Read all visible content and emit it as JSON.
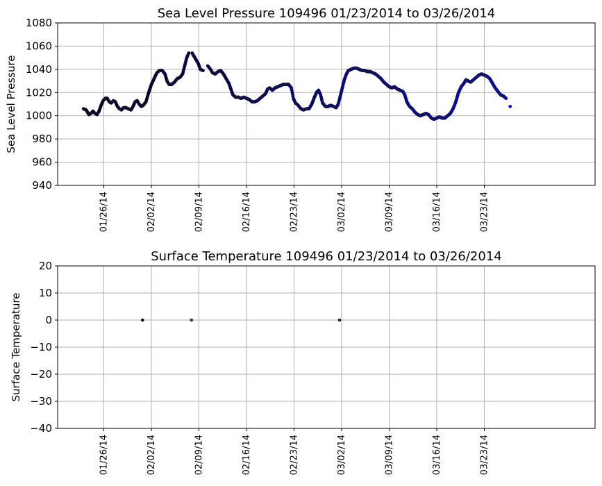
{
  "chart_data": [
    {
      "type": "scatter",
      "title": "Sea Level Pressure 109496  01/23/2014 to 03/26/2014",
      "xlabel": "",
      "ylabel": "Sea Level Pressure",
      "ylim": [
        940,
        1080
      ],
      "yticks": [
        940,
        960,
        980,
        1000,
        1020,
        1040,
        1060,
        1080
      ],
      "xlim_days": [
        -3.8,
        75.3
      ],
      "xticks": [
        {
          "day": 3,
          "label": "01/26/14"
        },
        {
          "day": 10,
          "label": "02/02/14"
        },
        {
          "day": 17,
          "label": "02/09/14"
        },
        {
          "day": 24,
          "label": "02/16/14"
        },
        {
          "day": 31,
          "label": "02/23/14"
        },
        {
          "day": 38,
          "label": "03/02/14"
        },
        {
          "day": 45,
          "label": "03/09/14"
        },
        {
          "day": 52,
          "label": "03/16/14"
        },
        {
          "day": 59,
          "label": "03/23/14"
        }
      ],
      "grid": true,
      "color_gradient": [
        "#000000",
        "#0000ff"
      ],
      "segments": [
        {
          "name": "segment-1",
          "points": [
            [
              0.0,
              1006
            ],
            [
              0.4,
              1005
            ],
            [
              0.8,
              1001
            ],
            [
              1.1,
              1002
            ],
            [
              1.4,
              1004
            ],
            [
              1.7,
              1002
            ],
            [
              2.0,
              1001
            ],
            [
              2.3,
              1004
            ],
            [
              2.6,
              1009
            ],
            [
              2.9,
              1013
            ],
            [
              3.2,
              1015
            ],
            [
              3.5,
              1015
            ],
            [
              3.8,
              1012
            ],
            [
              4.1,
              1011
            ],
            [
              4.4,
              1013
            ],
            [
              4.7,
              1012
            ],
            [
              5.0,
              1008
            ],
            [
              5.3,
              1006
            ],
            [
              5.6,
              1005
            ],
            [
              5.9,
              1007
            ],
            [
              6.2,
              1007
            ],
            [
              6.6,
              1006
            ],
            [
              7.0,
              1005
            ],
            [
              7.3,
              1008
            ],
            [
              7.6,
              1012
            ],
            [
              7.9,
              1013
            ],
            [
              8.2,
              1010
            ],
            [
              8.5,
              1008
            ],
            [
              8.8,
              1009
            ],
            [
              9.2,
              1012
            ],
            [
              9.6,
              1020
            ],
            [
              10.0,
              1027
            ],
            [
              10.4,
              1032
            ],
            [
              10.8,
              1037
            ],
            [
              11.2,
              1039
            ],
            [
              11.6,
              1039
            ],
            [
              12.0,
              1036
            ],
            [
              12.3,
              1030
            ],
            [
              12.6,
              1027
            ],
            [
              13.0,
              1027
            ],
            [
              13.4,
              1029
            ],
            [
              13.8,
              1032
            ],
            [
              14.2,
              1033
            ],
            [
              14.6,
              1036
            ],
            [
              14.9,
              1043
            ],
            [
              15.2,
              1050
            ],
            [
              15.5,
              1054
            ]
          ]
        },
        {
          "name": "segment-2",
          "points": [
            [
              16.0,
              1054
            ],
            [
              16.3,
              1051
            ],
            [
              16.6,
              1048
            ],
            [
              16.9,
              1045
            ],
            [
              17.2,
              1040
            ],
            [
              17.6,
              1039
            ]
          ]
        },
        {
          "name": "segment-3",
          "points": [
            [
              18.3,
              1043
            ],
            [
              18.7,
              1040
            ],
            [
              19.0,
              1037
            ],
            [
              19.4,
              1036
            ],
            [
              19.8,
              1038
            ],
            [
              20.2,
              1039
            ],
            [
              20.6,
              1036
            ],
            [
              21.0,
              1032
            ],
            [
              21.4,
              1028
            ],
            [
              21.7,
              1023
            ],
            [
              22.0,
              1018
            ],
            [
              22.4,
              1016
            ],
            [
              22.8,
              1016
            ],
            [
              23.2,
              1015
            ],
            [
              23.6,
              1016
            ],
            [
              24.0,
              1015
            ],
            [
              24.4,
              1014
            ],
            [
              24.8,
              1012
            ],
            [
              25.2,
              1012
            ],
            [
              25.6,
              1013
            ],
            [
              26.0,
              1015
            ],
            [
              26.4,
              1017
            ],
            [
              26.8,
              1019
            ],
            [
              27.1,
              1023
            ],
            [
              27.4,
              1024
            ],
            [
              27.8,
              1022
            ],
            [
              28.2,
              1024
            ],
            [
              28.6,
              1025
            ],
            [
              29.0,
              1026
            ],
            [
              29.4,
              1027
            ],
            [
              29.8,
              1027
            ],
            [
              30.2,
              1027
            ],
            [
              30.6,
              1024
            ],
            [
              30.9,
              1015
            ],
            [
              31.2,
              1011
            ],
            [
              31.6,
              1009
            ],
            [
              32.0,
              1006
            ],
            [
              32.4,
              1005
            ],
            [
              32.8,
              1006
            ],
            [
              33.2,
              1006
            ],
            [
              33.6,
              1010
            ],
            [
              34.0,
              1016
            ],
            [
              34.3,
              1020
            ],
            [
              34.6,
              1022
            ],
            [
              34.9,
              1018
            ],
            [
              35.2,
              1011
            ],
            [
              35.6,
              1008
            ],
            [
              36.0,
              1008
            ],
            [
              36.4,
              1009
            ],
            [
              36.8,
              1008
            ],
            [
              37.2,
              1007
            ],
            [
              37.5,
              1010
            ],
            [
              37.8,
              1017
            ],
            [
              38.1,
              1024
            ],
            [
              38.4,
              1031
            ],
            [
              38.7,
              1036
            ],
            [
              39.0,
              1039
            ],
            [
              39.4,
              1040
            ],
            [
              39.8,
              1041
            ],
            [
              40.2,
              1041
            ],
            [
              40.6,
              1040
            ],
            [
              41.0,
              1039
            ],
            [
              41.4,
              1039
            ],
            [
              41.8,
              1038
            ],
            [
              42.2,
              1038
            ],
            [
              42.6,
              1037
            ],
            [
              43.0,
              1036
            ],
            [
              43.4,
              1034
            ],
            [
              43.8,
              1032
            ],
            [
              44.2,
              1029
            ],
            [
              44.6,
              1027
            ],
            [
              45.0,
              1025
            ],
            [
              45.4,
              1024
            ],
            [
              45.8,
              1025
            ],
            [
              46.2,
              1023
            ],
            [
              46.6,
              1022
            ],
            [
              47.0,
              1021
            ],
            [
              47.3,
              1018
            ],
            [
              47.6,
              1012
            ],
            [
              48.0,
              1008
            ],
            [
              48.4,
              1006
            ],
            [
              48.8,
              1003
            ],
            [
              49.2,
              1001
            ],
            [
              49.6,
              1000
            ],
            [
              50.0,
              1001
            ],
            [
              50.4,
              1002
            ],
            [
              50.8,
              1001
            ],
            [
              51.2,
              998
            ],
            [
              51.6,
              997
            ],
            [
              52.0,
              998
            ],
            [
              52.4,
              999
            ],
            [
              52.8,
              998
            ],
            [
              53.2,
              998
            ],
            [
              53.6,
              1000
            ],
            [
              54.0,
              1002
            ],
            [
              54.4,
              1006
            ],
            [
              54.8,
              1012
            ],
            [
              55.2,
              1020
            ],
            [
              55.6,
              1025
            ],
            [
              56.0,
              1028
            ],
            [
              56.3,
              1031
            ],
            [
              56.6,
              1030
            ],
            [
              57.0,
              1029
            ],
            [
              57.4,
              1031
            ],
            [
              57.8,
              1033
            ],
            [
              58.2,
              1035
            ],
            [
              58.6,
              1036
            ],
            [
              59.0,
              1035
            ],
            [
              59.4,
              1034
            ],
            [
              59.8,
              1032
            ],
            [
              60.2,
              1028
            ],
            [
              60.6,
              1024
            ],
            [
              61.0,
              1021
            ],
            [
              61.4,
              1018
            ],
            [
              61.8,
              1017
            ],
            [
              62.2,
              1015
            ]
          ]
        },
        {
          "name": "segment-4",
          "points": [
            [
              62.8,
              1008
            ]
          ]
        }
      ]
    },
    {
      "type": "scatter",
      "title": "Surface Temperature 109496  01/23/2014 to 03/26/2014",
      "xlabel": "",
      "ylabel": "Surface Temperature",
      "ylim": [
        -40,
        20
      ],
      "yticks": [
        -40,
        -30,
        -20,
        -10,
        0,
        10,
        20
      ],
      "ytick_labels": [
        "−40",
        "−30",
        "−20",
        "−10",
        "0",
        "10",
        "20"
      ],
      "xlim_days": [
        -3.8,
        75.3
      ],
      "xticks": [
        {
          "day": 3,
          "label": "01/26/14"
        },
        {
          "day": 10,
          "label": "02/02/14"
        },
        {
          "day": 17,
          "label": "02/09/14"
        },
        {
          "day": 24,
          "label": "02/16/14"
        },
        {
          "day": 31,
          "label": "02/23/14"
        },
        {
          "day": 38,
          "label": "03/02/14"
        },
        {
          "day": 45,
          "label": "03/09/14"
        },
        {
          "day": 52,
          "label": "03/16/14"
        },
        {
          "day": 59,
          "label": "03/23/14"
        }
      ],
      "grid": true,
      "points": [
        {
          "day": 8.7,
          "value": 0,
          "color": "#000000"
        },
        {
          "day": 15.9,
          "value": 0,
          "color": "#3a3a78"
        },
        {
          "day": 37.7,
          "value": 0,
          "color": "#1a1a90"
        }
      ]
    }
  ]
}
